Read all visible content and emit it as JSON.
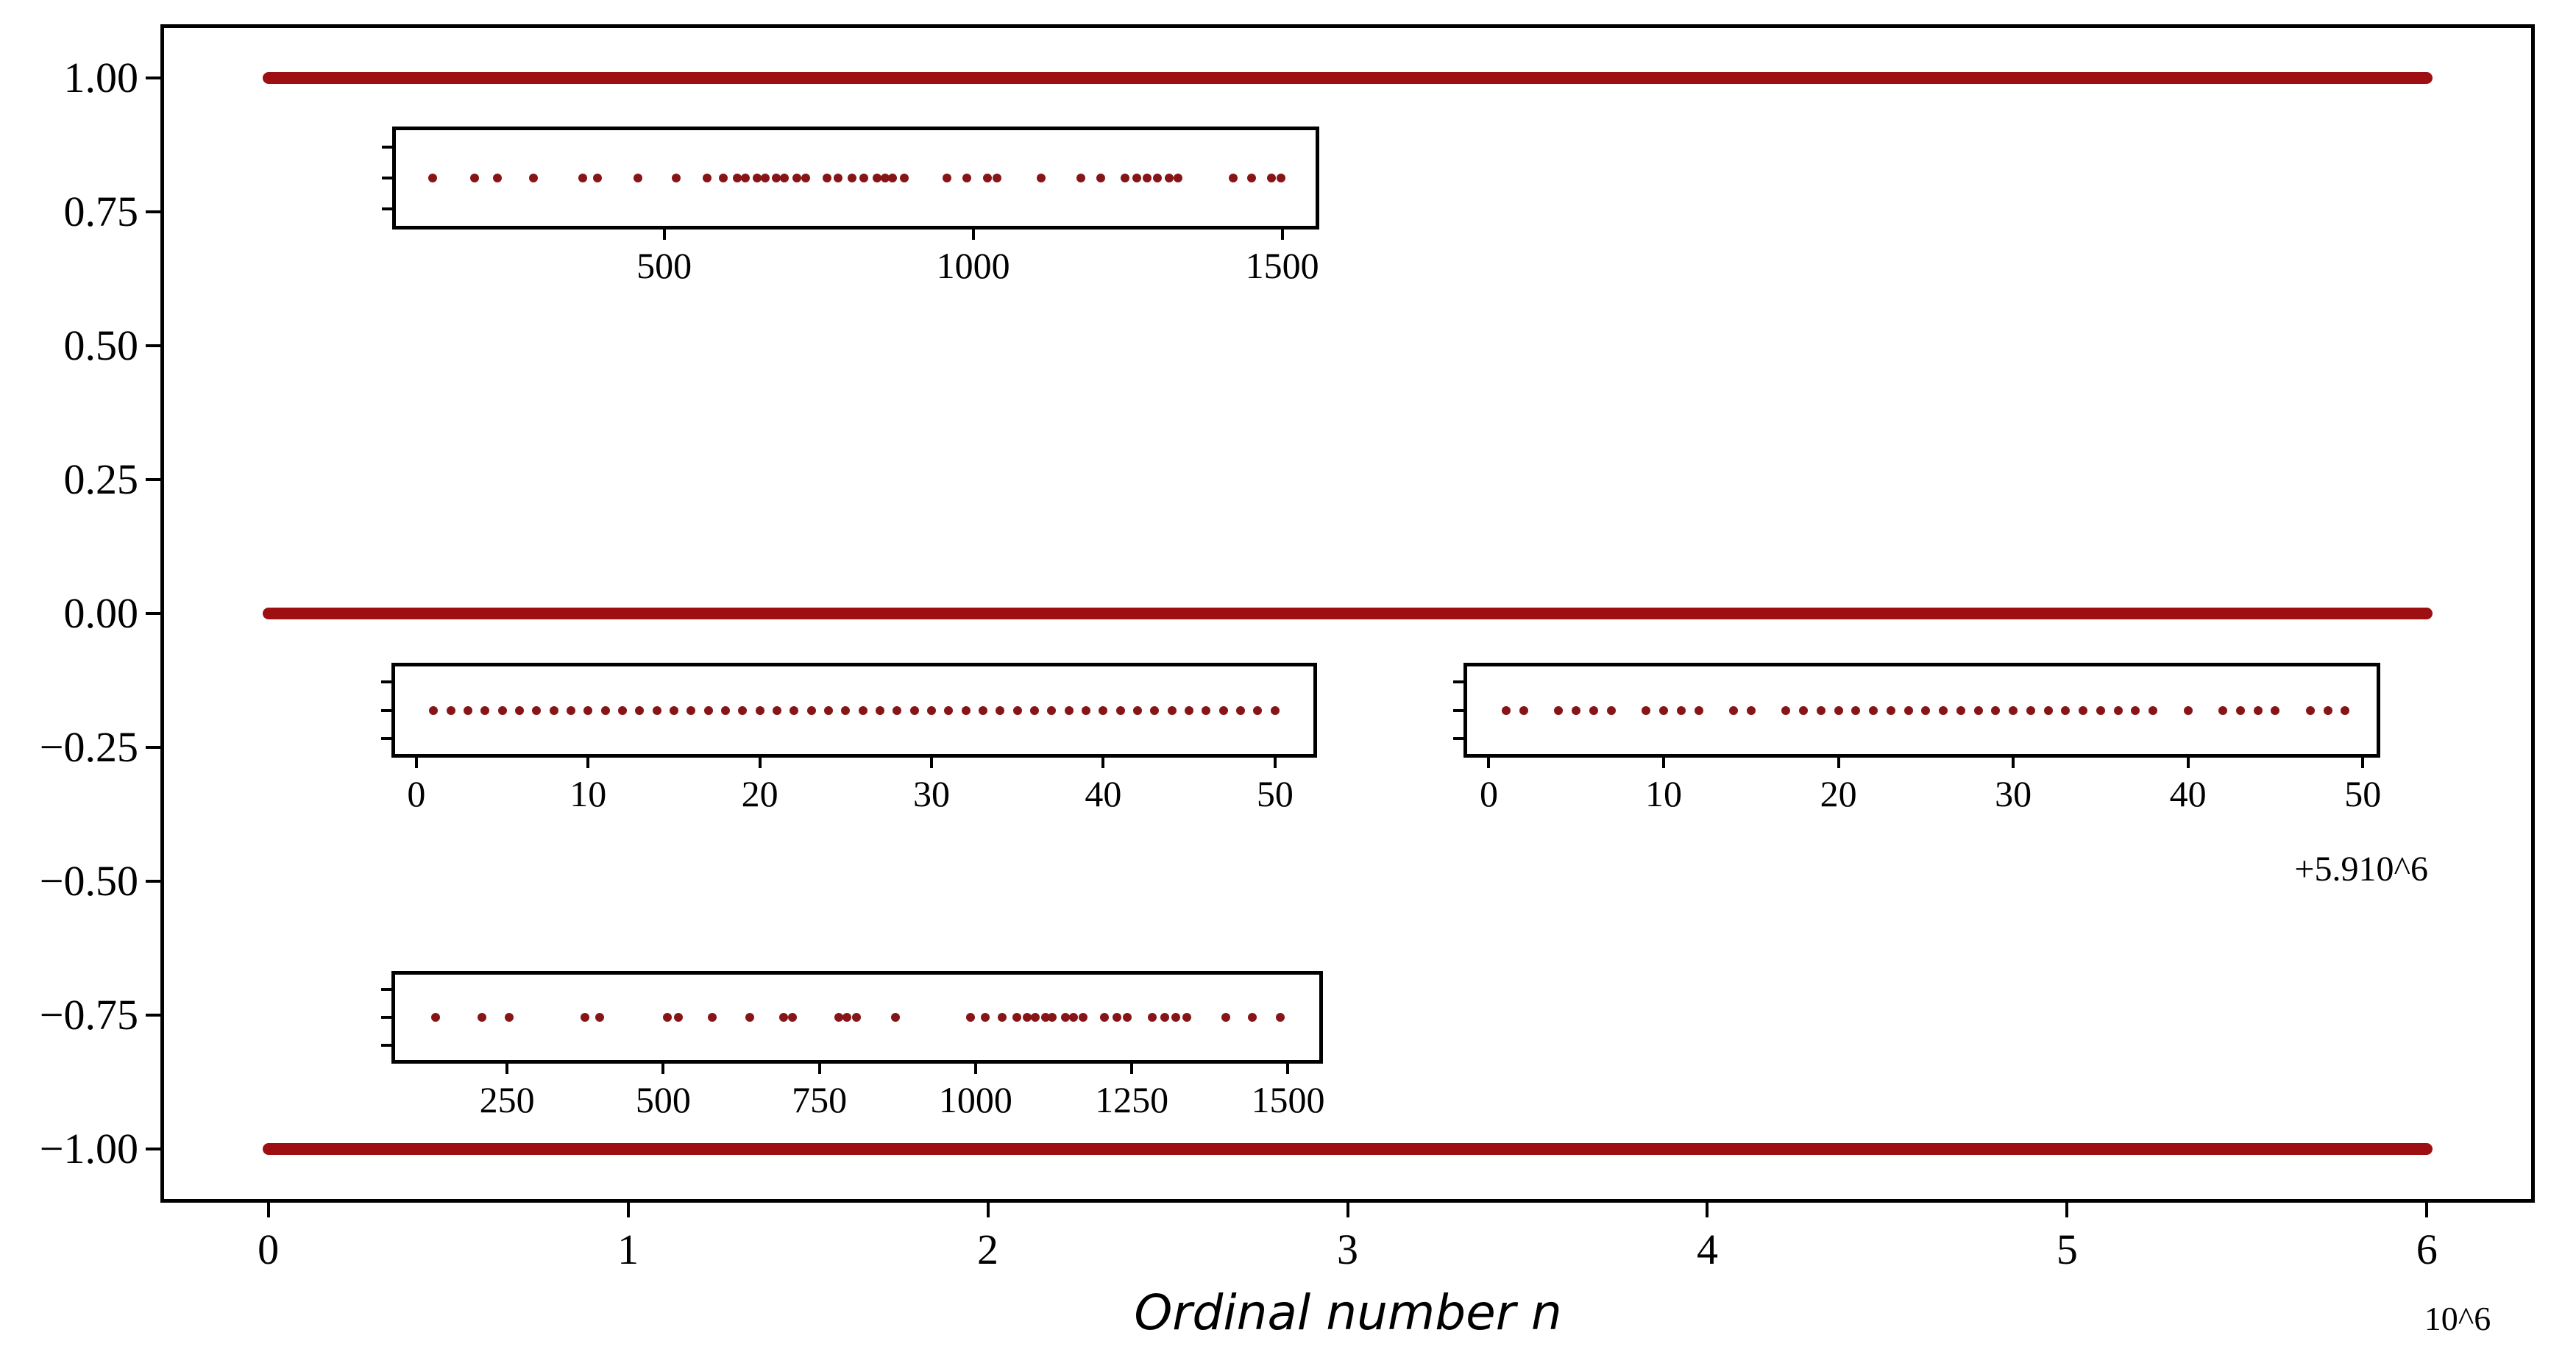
{
  "chart_data": {
    "type": "scatter",
    "title": "",
    "xlabel": "Ordinal number n",
    "ylabel": "",
    "marker_color": "#871517",
    "band_color": "#9d0f10",
    "axis_color": "#000000",
    "background": "#ffffff",
    "main": {
      "xlim": [
        -0.3,
        6.3
      ],
      "ylim": [
        -1.1,
        1.1
      ],
      "xtick_values": [
        0,
        1,
        2,
        3,
        4,
        5,
        6
      ],
      "xtick_labels": [
        "0",
        "1",
        "2",
        "3",
        "4",
        "5",
        "6"
      ],
      "ytick_values": [
        1.0,
        0.75,
        0.5,
        0.25,
        0.0,
        -0.25,
        -0.5,
        -0.75,
        -1.0
      ],
      "ytick_labels": [
        "1.00",
        "0.75",
        "0.50",
        "0.25",
        "0.00",
        "−0.25",
        "−0.50",
        "−0.75",
        "−1.00"
      ],
      "offset_text": "10^6",
      "grid": false,
      "legend": null,
      "series": [
        {
          "name": "band at y=1.00",
          "type": "dense-horizontal-band",
          "y": 1.0,
          "x_start": 0.0,
          "x_end": 6.0
        },
        {
          "name": "band at y=0.00",
          "type": "dense-horizontal-band",
          "y": 0.0,
          "x_start": 0.0,
          "x_end": 6.0
        },
        {
          "name": "band at y=-1.00",
          "type": "dense-horizontal-band",
          "y": -1.0,
          "x_start": 0.0,
          "x_end": 6.0
        }
      ]
    },
    "insets": [
      {
        "name": "top",
        "y_level_main": 0.81,
        "xlim": [
          60,
          1560
        ],
        "xtick_values": [
          500,
          1000,
          1500
        ],
        "xtick_labels": [
          "500",
          "1000",
          "1500"
        ],
        "offset_text": "",
        "points_x": [
          125,
          193,
          230,
          289,
          368,
          392,
          458,
          519,
          570,
          596,
          618,
          631,
          650,
          663,
          681,
          694,
          715,
          729,
          764,
          782,
          804,
          823,
          845,
          858,
          869,
          888,
          958,
          990,
          1023,
          1039,
          1110,
          1174,
          1206,
          1246,
          1265,
          1282,
          1298,
          1317,
          1332,
          1421,
          1451,
          1483,
          1498
        ]
      },
      {
        "name": "mid-left",
        "y_level_main": -0.18,
        "xlim": [
          -1.45,
          52.45
        ],
        "xtick_values": [
          0,
          10,
          20,
          30,
          40,
          50
        ],
        "xtick_labels": [
          "0",
          "10",
          "20",
          "30",
          "40",
          "50"
        ],
        "offset_text": "",
        "points_x": [
          1,
          2,
          3,
          4,
          5,
          6,
          7,
          8,
          9,
          10,
          11,
          12,
          13,
          14,
          15,
          16,
          17,
          18,
          19,
          20,
          21,
          22,
          23,
          24,
          25,
          26,
          27,
          28,
          29,
          30,
          31,
          32,
          33,
          34,
          35,
          36,
          37,
          38,
          39,
          40,
          41,
          42,
          43,
          44,
          45,
          46,
          47,
          48,
          49,
          50
        ]
      },
      {
        "name": "mid-right",
        "y_level_main": -0.18,
        "xlim": [
          -1.45,
          51.0
        ],
        "xtick_values": [
          0,
          10,
          20,
          30,
          40,
          50
        ],
        "xtick_labels": [
          "0",
          "10",
          "20",
          "30",
          "40",
          "50"
        ],
        "offset_text": "+5.910^6",
        "points_x": [
          1,
          2,
          4,
          5,
          6,
          7,
          9,
          10,
          11,
          12,
          14,
          15,
          17,
          18,
          19,
          20,
          21,
          22,
          23,
          24,
          25,
          26,
          27,
          28,
          29,
          30,
          31,
          32,
          33,
          34,
          35,
          36,
          37,
          38,
          40,
          42,
          43,
          44,
          45,
          47,
          48,
          49
        ]
      },
      {
        "name": "bottom",
        "y_level_main": -0.75,
        "xlim": [
          65,
          1556
        ],
        "xtick_values": [
          250,
          500,
          750,
          1000,
          1250,
          1500
        ],
        "xtick_labels": [
          "250",
          "500",
          "750",
          "1000",
          "1250",
          "1500"
        ],
        "offset_text": "",
        "points_x": [
          136,
          210,
          253,
          375,
          398,
          507,
          524,
          579,
          638,
          693,
          707,
          781,
          794,
          809,
          872,
          992,
          1015,
          1043,
          1066,
          1083,
          1095,
          1112,
          1123,
          1144,
          1157,
          1172,
          1206,
          1226,
          1243,
          1283,
          1303,
          1320,
          1338,
          1400,
          1443,
          1488
        ]
      }
    ]
  }
}
